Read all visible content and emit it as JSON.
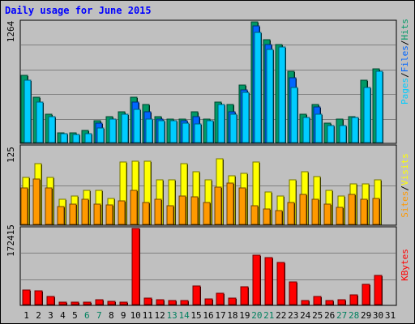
{
  "title": "Daily usage for June 2015",
  "colors": {
    "background": "#c0c0c0",
    "title": "#0000ff",
    "hits": "#009966",
    "files": "#0066ff",
    "pages": "#00ccff",
    "visits": "#ffff00",
    "sites": "#ff9900",
    "kbytes": "#ff0000",
    "weekend_day_label": "#00805f"
  },
  "labels": {
    "hits": "Hits",
    "files": "Files",
    "pages": "Pages",
    "visits": "Visits",
    "sites": "Sites",
    "kbytes": "KBytes",
    "separator": "/"
  },
  "chart_data": [
    {
      "type": "bar",
      "panel": "hits-files-pages",
      "ymax_label": "1264",
      "ylim": [
        0,
        1264
      ],
      "categories": [
        "1",
        "2",
        "3",
        "4",
        "5",
        "6",
        "7",
        "8",
        "9",
        "10",
        "11",
        "12",
        "13",
        "14",
        "15",
        "16",
        "17",
        "18",
        "19",
        "20",
        "21",
        "22",
        "23",
        "24",
        "25",
        "26",
        "27",
        "28",
        "29",
        "30",
        "31"
      ],
      "weekend_days": [
        "6",
        "7",
        "13",
        "14",
        "20",
        "21",
        "27",
        "28"
      ],
      "series": [
        {
          "name": "Hits",
          "values": [
            700,
            475,
            300,
            100,
            100,
            125,
            225,
            275,
            325,
            475,
            400,
            275,
            250,
            250,
            325,
            250,
            425,
            400,
            600,
            1264,
            1075,
            1025,
            750,
            300,
            400,
            200,
            250,
            275,
            650,
            775,
            0
          ]
        },
        {
          "name": "Files",
          "values": [
            0,
            0,
            0,
            0,
            0,
            0,
            200,
            0,
            0,
            425,
            325,
            250,
            0,
            225,
            275,
            0,
            0,
            325,
            550,
            1225,
            1025,
            0,
            675,
            0,
            375,
            0,
            0,
            0,
            0,
            0,
            0
          ]
        },
        {
          "name": "Pages",
          "values": [
            650,
            425,
            275,
            90,
            85,
            95,
            155,
            250,
            300,
            350,
            250,
            230,
            230,
            200,
            195,
            230,
            400,
            300,
            530,
            1150,
            975,
            1000,
            575,
            260,
            300,
            175,
            180,
            260,
            575,
            750,
            0
          ]
        }
      ]
    },
    {
      "type": "bar",
      "panel": "visits-sites",
      "ymax_label": "125",
      "ylim": [
        0,
        125
      ],
      "categories": [
        "1",
        "2",
        "3",
        "4",
        "5",
        "6",
        "7",
        "8",
        "9",
        "10",
        "11",
        "12",
        "13",
        "14",
        "15",
        "16",
        "17",
        "18",
        "19",
        "20",
        "21",
        "22",
        "23",
        "24",
        "25",
        "26",
        "27",
        "28",
        "29",
        "30",
        "31"
      ],
      "series": [
        {
          "name": "Visits",
          "values": [
            75,
            98,
            75,
            40,
            45,
            55,
            55,
            42,
            100,
            102,
            102,
            72,
            72,
            98,
            85,
            72,
            105,
            78,
            82,
            100,
            52,
            45,
            72,
            85,
            77,
            55,
            45,
            65,
            65,
            72,
            0
          ]
        },
        {
          "name": "Sites",
          "values": [
            58,
            73,
            58,
            28,
            32,
            40,
            32,
            31,
            38,
            55,
            35,
            40,
            30,
            45,
            44,
            35,
            60,
            66,
            58,
            30,
            25,
            22,
            35,
            48,
            40,
            32,
            27,
            48,
            40,
            42,
            0
          ]
        }
      ]
    },
    {
      "type": "bar",
      "panel": "kbytes",
      "ymax_label": "172415",
      "ylim": [
        0,
        172415
      ],
      "categories": [
        "1",
        "2",
        "3",
        "4",
        "5",
        "6",
        "7",
        "8",
        "9",
        "10",
        "11",
        "12",
        "13",
        "14",
        "15",
        "16",
        "17",
        "18",
        "19",
        "20",
        "21",
        "22",
        "23",
        "24",
        "25",
        "26",
        "27",
        "28",
        "29",
        "30",
        "31"
      ],
      "series": [
        {
          "name": "KBytes",
          "values": [
            33000,
            31000,
            18000,
            6000,
            6000,
            5000,
            11000,
            7000,
            6000,
            172415,
            15000,
            11000,
            9000,
            9000,
            43000,
            12000,
            25000,
            14000,
            40000,
            112000,
            106000,
            96000,
            52000,
            10000,
            18000,
            10000,
            11000,
            22000,
            45000,
            66000,
            0
          ]
        }
      ]
    }
  ]
}
